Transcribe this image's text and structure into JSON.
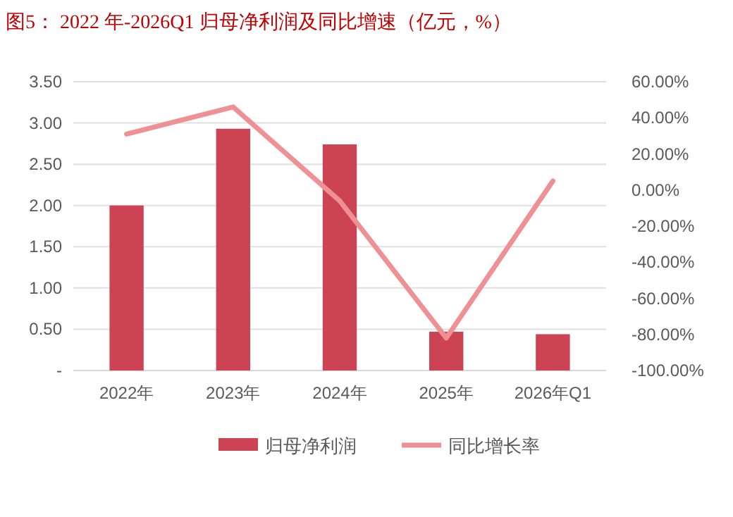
{
  "chart_data": {
    "type": "bar",
    "title": "图5：  2022 年-2026Q1 归母净利润及同比增速（亿元，%）",
    "categories": [
      "2022年",
      "2023年",
      "2024年",
      "2025年",
      "2026年Q1"
    ],
    "series": [
      {
        "name": "归母净利润",
        "color": "#cc4454",
        "values": [
          2.0,
          2.93,
          2.74,
          0.47,
          0.44
        ]
      },
      {
        "name": "同比增长率",
        "type": "line",
        "axis": "y2",
        "color": "#ee9094",
        "values": [
          31,
          46,
          -6,
          -82,
          5
        ]
      }
    ],
    "ylim": [
      0,
      3.5
    ],
    "yticks": [
      {
        "value": 0,
        "label": "-"
      },
      {
        "value": 0.5,
        "label": "0.50"
      },
      {
        "value": 1,
        "label": "1.00"
      },
      {
        "value": 1.5,
        "label": "1.50"
      },
      {
        "value": 2,
        "label": "2.00"
      },
      {
        "value": 2.5,
        "label": "2.50"
      },
      {
        "value": 3,
        "label": "3.00"
      },
      {
        "value": 3.5,
        "label": "3.50"
      }
    ],
    "y2lim": [
      -100,
      60
    ],
    "y2ticks": [
      {
        "value": -100,
        "label": "-100.00%"
      },
      {
        "value": -80,
        "label": "-80.00%"
      },
      {
        "value": -60,
        "label": "-60.00%"
      },
      {
        "value": -40,
        "label": "-40.00%"
      },
      {
        "value": -20,
        "label": "-20.00%"
      },
      {
        "value": 0,
        "label": "0.00%"
      },
      {
        "value": 20,
        "label": "20.00%"
      },
      {
        "value": 40,
        "label": "40.00%"
      },
      {
        "value": 60,
        "label": "60.00%"
      }
    ],
    "grid": "y",
    "legend": "bottom",
    "marker": "none"
  }
}
